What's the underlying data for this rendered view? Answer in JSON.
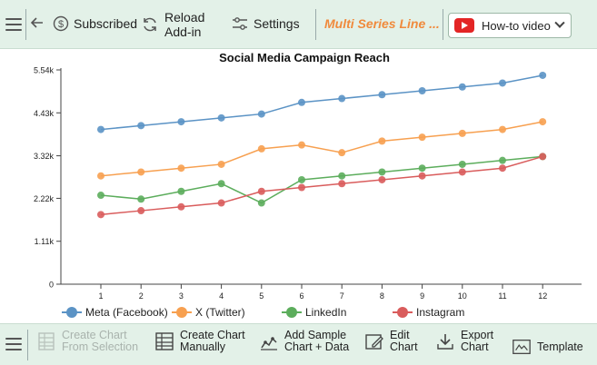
{
  "toolbar": {
    "subscribed_label": "Subscribed",
    "reload_label_1": "Reload",
    "reload_label_2": "Add-in",
    "settings_label": "Settings",
    "chart_name": "Multi Series Line ...",
    "howto_label": "How-to video"
  },
  "bottom_toolbar": {
    "create_selection_1": "Create Chart",
    "create_selection_2": "From Selection",
    "create_manual_1": "Create Chart",
    "create_manual_2": "Manually",
    "add_sample_1": "Add Sample",
    "add_sample_2": "Chart + Data",
    "edit_1": "Edit",
    "edit_2": "Chart",
    "export_1": "Export",
    "export_2": "Chart",
    "template": "Template"
  },
  "colors": {
    "accent": "#f08a3c",
    "toolbar_bg": "#e3f1e8"
  },
  "chart_data": {
    "type": "line",
    "title": "Social Media Campaign Reach",
    "xlabel": "",
    "ylabel": "",
    "x": [
      1,
      2,
      3,
      4,
      5,
      6,
      7,
      8,
      9,
      10,
      11,
      12
    ],
    "yticks": [
      0,
      1110,
      2220,
      3320,
      4430,
      5540
    ],
    "ytick_labels": [
      "0",
      "1.11k",
      "2.22k",
      "3.32k",
      "4.43k",
      "5.54k"
    ],
    "ylim": [
      0,
      5540
    ],
    "grid": false,
    "legend_position": "bottom",
    "series": [
      {
        "name": "Meta (Facebook)",
        "color": "#5b93c5",
        "values": [
          4000,
          4100,
          4200,
          4300,
          4400,
          4700,
          4800,
          4900,
          5000,
          5100,
          5200,
          5400
        ]
      },
      {
        "name": "X (Twitter)",
        "color": "#f7a050",
        "values": [
          2800,
          2900,
          3000,
          3100,
          3500,
          3600,
          3400,
          3700,
          3800,
          3900,
          4000,
          4200
        ]
      },
      {
        "name": "LinkedIn",
        "color": "#5cad5c",
        "values": [
          2300,
          2200,
          2400,
          2600,
          2100,
          2700,
          2800,
          2900,
          3000,
          3100,
          3200,
          3300
        ]
      },
      {
        "name": "Instagram",
        "color": "#d95c5c",
        "values": [
          1800,
          1900,
          2000,
          2100,
          2400,
          2500,
          2600,
          2700,
          2800,
          2900,
          3000,
          3300
        ]
      }
    ]
  }
}
